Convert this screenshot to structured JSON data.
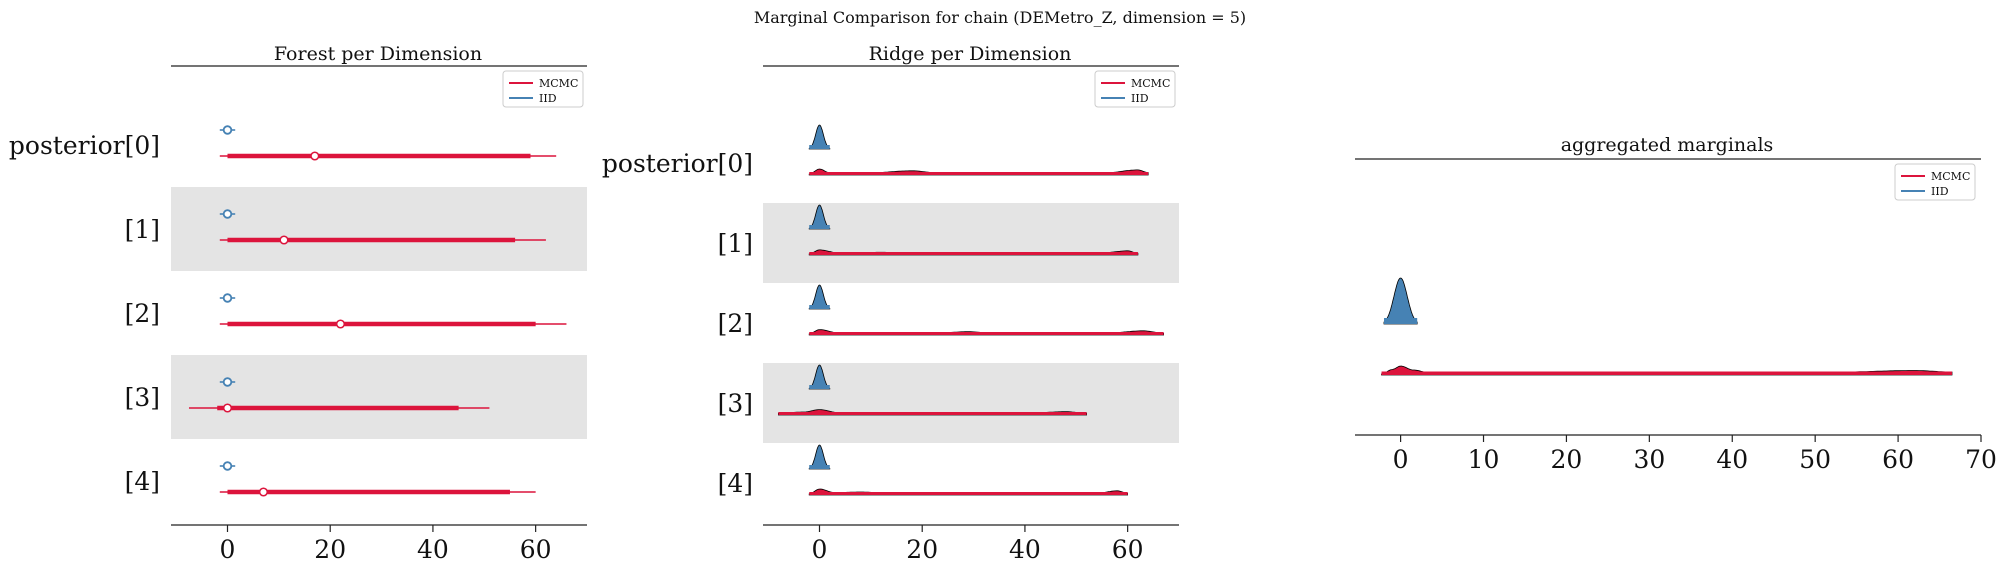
{
  "suptitle": "Marginal Comparison for chain (DEMetro_Z, dimension = 5)",
  "colors": {
    "mcmc": "#dc143c",
    "iid": "#4682b4",
    "band": "#e4e4e4",
    "edge": "#000000"
  },
  "legend": {
    "items": [
      "MCMC",
      "IID"
    ],
    "placement": "top-right"
  },
  "chart_data": [
    {
      "type": "forest",
      "title": "Forest per Dimension",
      "labels": [
        "posterior[0]",
        "[1]",
        "[2]",
        "[3]",
        "[4]"
      ],
      "xlim": [
        -11,
        70
      ],
      "xticks": [
        0,
        20,
        40,
        60
      ],
      "series": [
        {
          "name": "MCMC",
          "rows": [
            {
              "lo": -1.5,
              "q1": 0,
              "median": 17,
              "q3": 59,
              "hi": 64
            },
            {
              "lo": -1.5,
              "q1": 0,
              "median": 11,
              "q3": 56,
              "hi": 62
            },
            {
              "lo": -1.5,
              "q1": 0,
              "median": 22,
              "q3": 60,
              "hi": 66
            },
            {
              "lo": -7.5,
              "q1": -2,
              "median": 0,
              "q3": 45,
              "hi": 51
            },
            {
              "lo": -1.5,
              "q1": 0,
              "median": 7,
              "q3": 55,
              "hi": 60
            }
          ]
        },
        {
          "name": "IID",
          "rows": [
            {
              "lo": -1.5,
              "q1": -0.7,
              "median": 0,
              "q3": 0.7,
              "hi": 1.5
            },
            {
              "lo": -1.5,
              "q1": -0.7,
              "median": 0,
              "q3": 0.7,
              "hi": 1.5
            },
            {
              "lo": -1.5,
              "q1": -0.7,
              "median": 0,
              "q3": 0.7,
              "hi": 1.5
            },
            {
              "lo": -1.5,
              "q1": -0.7,
              "median": 0,
              "q3": 0.7,
              "hi": 1.5
            },
            {
              "lo": -1.5,
              "q1": -0.7,
              "median": 0,
              "q3": 0.7,
              "hi": 1.5
            }
          ]
        }
      ]
    },
    {
      "type": "ridge",
      "title": "Ridge per Dimension",
      "labels": [
        "posterior[0]",
        "[1]",
        "[2]",
        "[3]",
        "[4]"
      ],
      "xlim": [
        -11,
        70
      ],
      "xticks": [
        0,
        20,
        40,
        60
      ],
      "series": [
        {
          "name": "MCMC",
          "rows": [
            {
              "range": [
                -2,
                64
              ],
              "points": [
                [
                  -2,
                  0.15
                ],
                [
                  0,
                  1
                ],
                [
                  2,
                  0.35
                ],
                [
                  8,
                  0.25
                ],
                [
                  18,
                  0.7
                ],
                [
                  24,
                  0.25
                ],
                [
                  40,
                  0.25
                ],
                [
                  55,
                  0.3
                ],
                [
                  62,
                  0.85
                ],
                [
                  64,
                  0.4
                ]
              ]
            },
            {
              "range": [
                -2,
                62
              ],
              "points": [
                [
                  -2,
                  0.2
                ],
                [
                  0,
                  0.85
                ],
                [
                  4,
                  0.3
                ],
                [
                  12,
                  0.45
                ],
                [
                  20,
                  0.25
                ],
                [
                  40,
                  0.2
                ],
                [
                  55,
                  0.35
                ],
                [
                  60,
                  0.7
                ],
                [
                  62,
                  0.3
                ]
              ]
            },
            {
              "range": [
                -2,
                67
              ],
              "points": [
                [
                  -2,
                  0.2
                ],
                [
                  0,
                  0.9
                ],
                [
                  4,
                  0.3
                ],
                [
                  20,
                  0.2
                ],
                [
                  29,
                  0.55
                ],
                [
                  35,
                  0.2
                ],
                [
                  55,
                  0.25
                ],
                [
                  63,
                  0.7
                ],
                [
                  67,
                  0.3
                ]
              ]
            },
            {
              "range": [
                -8,
                52
              ],
              "points": [
                [
                  -8,
                  0.3
                ],
                [
                  -3,
                  0.5
                ],
                [
                  0,
                  0.9
                ],
                [
                  4,
                  0.35
                ],
                [
                  20,
                  0.2
                ],
                [
                  40,
                  0.3
                ],
                [
                  48,
                  0.55
                ],
                [
                  52,
                  0.3
                ]
              ]
            },
            {
              "range": [
                -2,
                60
              ],
              "points": [
                [
                  -2,
                  0.2
                ],
                [
                  0,
                  1
                ],
                [
                  3,
                  0.4
                ],
                [
                  8,
                  0.5
                ],
                [
                  14,
                  0.25
                ],
                [
                  40,
                  0.2
                ],
                [
                  54,
                  0.3
                ],
                [
                  58,
                  0.7
                ],
                [
                  60,
                  0.3
                ]
              ]
            }
          ]
        },
        {
          "name": "IID",
          "rows": [
            {
              "range": [
                -2,
                2
              ]
            },
            {
              "range": [
                -2,
                2
              ]
            },
            {
              "range": [
                -2,
                2
              ]
            },
            {
              "range": [
                -2,
                2
              ]
            },
            {
              "range": [
                -2,
                2
              ]
            }
          ]
        }
      ]
    },
    {
      "type": "area",
      "title": "aggregated marginals",
      "xlim": [
        -5.5,
        70
      ],
      "xticks": [
        0,
        10,
        20,
        30,
        40,
        50,
        60,
        70
      ],
      "series": [
        {
          "name": "MCMC",
          "range": [
            -2.3,
            66.5
          ],
          "points": [
            [
              -2.3,
              0.1
            ],
            [
              -1,
              0.55
            ],
            [
              0,
              0.9
            ],
            [
              1.5,
              0.5
            ],
            [
              4,
              0.12
            ],
            [
              15,
              0.18
            ],
            [
              28,
              0.2
            ],
            [
              40,
              0.15
            ],
            [
              52,
              0.28
            ],
            [
              62,
              0.45
            ],
            [
              66.5,
              0.3
            ]
          ]
        },
        {
          "name": "IID",
          "range": [
            -2,
            2
          ]
        }
      ]
    }
  ]
}
